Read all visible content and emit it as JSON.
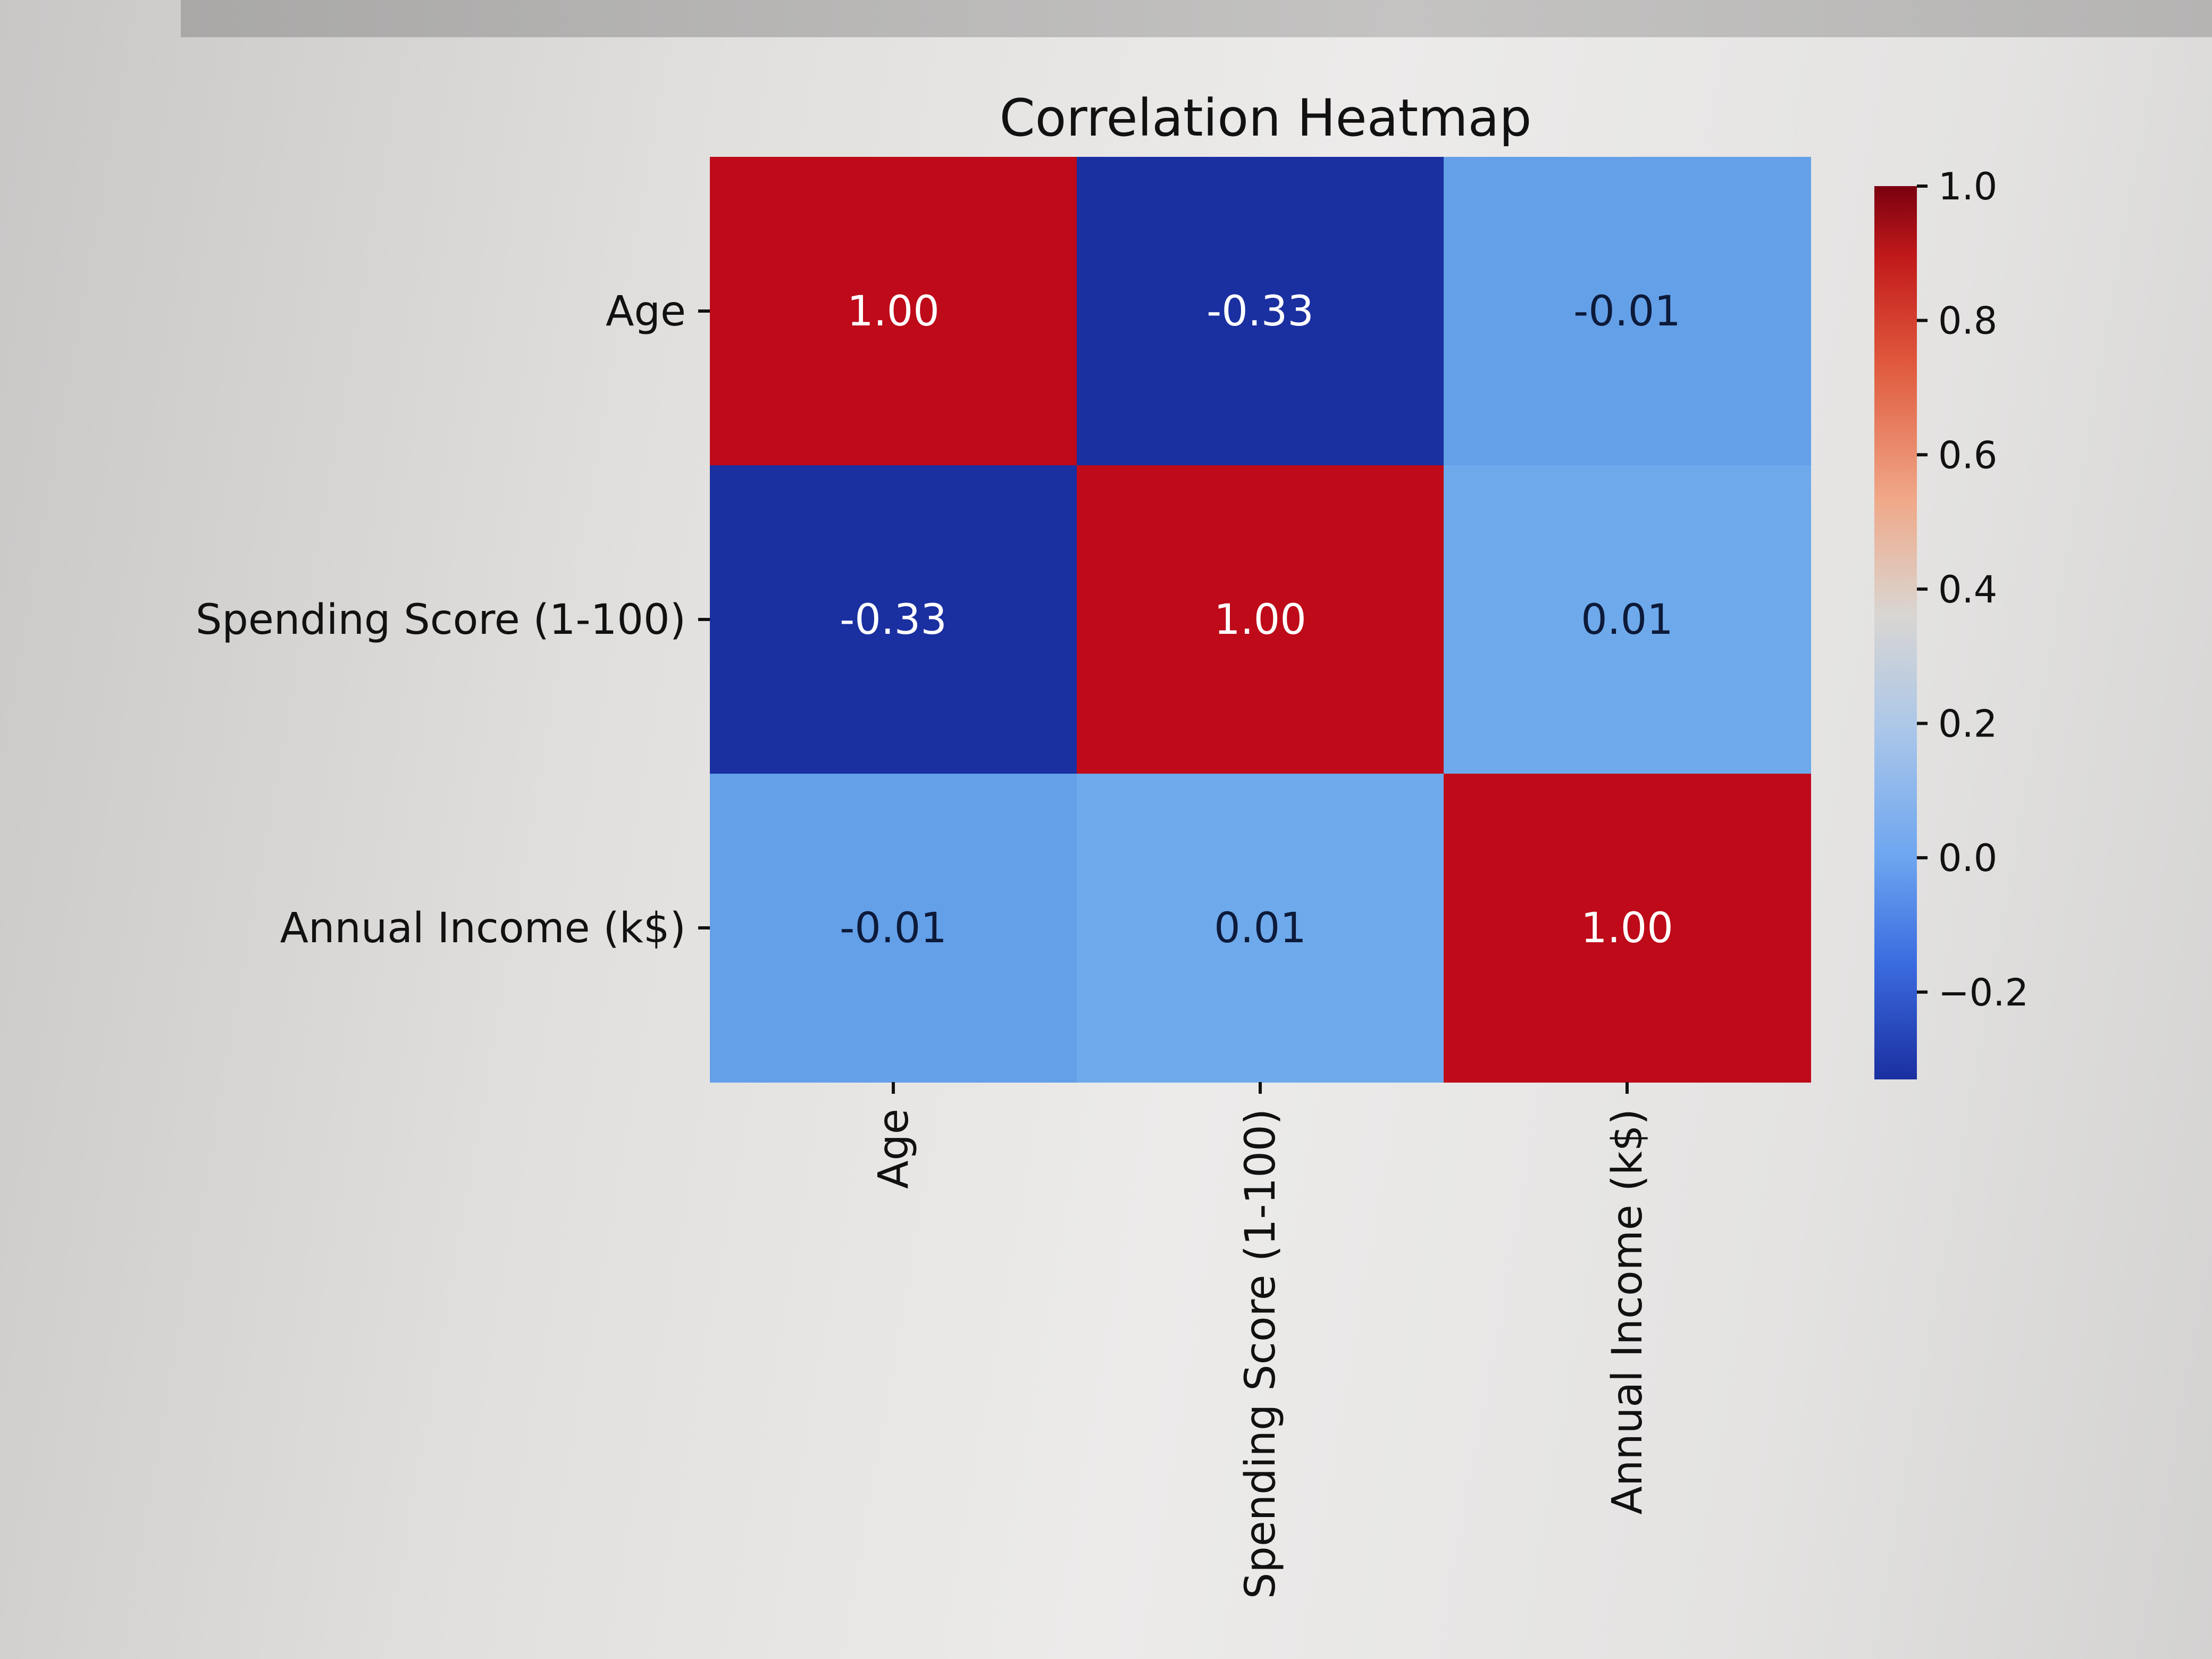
{
  "chart_data": {
    "type": "heatmap",
    "title": "Correlation Heatmap",
    "row_labels": [
      "Age",
      "Spending Score (1-100)",
      "Annual Income (k$)"
    ],
    "col_labels": [
      "Age",
      "Spending Score (1-100)",
      "Annual Income (k$)"
    ],
    "values": [
      [
        1.0,
        -0.33,
        -0.01
      ],
      [
        -0.33,
        1.0,
        0.01
      ],
      [
        -0.01,
        0.01,
        1.0
      ]
    ],
    "cell_labels": [
      [
        "1.00",
        "-0.33",
        "-0.01"
      ],
      [
        "-0.33",
        "1.00",
        "0.01"
      ],
      [
        "-0.01",
        "0.01",
        "1.00"
      ]
    ],
    "colormap": "coolwarm",
    "colorbar": {
      "min": -0.33,
      "max": 1.0,
      "ticks": [
        1.0,
        0.8,
        0.6,
        0.4,
        0.2,
        0.0,
        -0.2
      ],
      "tick_labels": [
        "1.0",
        "0.8",
        "0.6",
        "0.4",
        "0.2",
        "0.0",
        "−0.2"
      ]
    }
  }
}
